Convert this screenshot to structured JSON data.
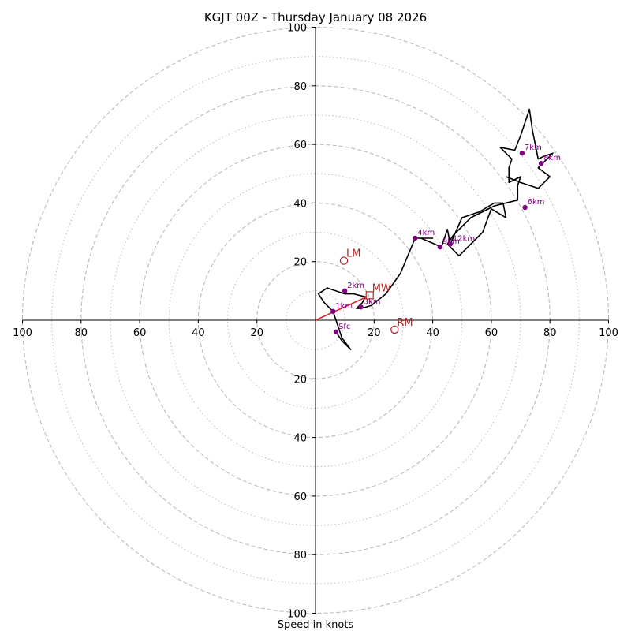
{
  "chart_data": {
    "type": "hodograph",
    "title": "KGJT 00Z - Thursday January 08 2026",
    "xlabel": "Speed in knots",
    "units": "knots",
    "range": [
      -100,
      100
    ],
    "ring_major": [
      20,
      40,
      60,
      80,
      100
    ],
    "ring_minor": [
      10,
      30,
      50,
      70,
      90
    ],
    "x_ticks": [
      {
        "v": -100,
        "label": "100"
      },
      {
        "v": -80,
        "label": "80"
      },
      {
        "v": -60,
        "label": "60"
      },
      {
        "v": -40,
        "label": "40"
      },
      {
        "v": -20,
        "label": "20"
      },
      {
        "v": 20,
        "label": "20"
      },
      {
        "v": 40,
        "label": "40"
      },
      {
        "v": 60,
        "label": "60"
      },
      {
        "v": 80,
        "label": "80"
      },
      {
        "v": 100,
        "label": "100"
      }
    ],
    "y_ticks": [
      {
        "v": 100,
        "label": "100"
      },
      {
        "v": 80,
        "label": "80"
      },
      {
        "v": 60,
        "label": "60"
      },
      {
        "v": 40,
        "label": "40"
      },
      {
        "v": 20,
        "label": "20"
      },
      {
        "v": -20,
        "label": "20"
      },
      {
        "v": -40,
        "label": "40"
      },
      {
        "v": -60,
        "label": "60"
      },
      {
        "v": -80,
        "label": "80"
      },
      {
        "v": -100,
        "label": "100"
      }
    ],
    "trace": [
      [
        7,
        -4
      ],
      [
        9,
        -7
      ],
      [
        12,
        -10
      ],
      [
        9,
        -6
      ],
      [
        6,
        3
      ],
      [
        3,
        6
      ],
      [
        1,
        9
      ],
      [
        4,
        11
      ],
      [
        10,
        9
      ],
      [
        13,
        9
      ],
      [
        17,
        8
      ],
      [
        16,
        6
      ],
      [
        14,
        4
      ],
      [
        15.5,
        4
      ],
      [
        19,
        5
      ],
      [
        24,
        9
      ],
      [
        29,
        16
      ],
      [
        34,
        28
      ],
      [
        40,
        28
      ],
      [
        36,
        28
      ],
      [
        43,
        25
      ],
      [
        45,
        31
      ],
      [
        46,
        26
      ],
      [
        50,
        35
      ],
      [
        56,
        37
      ],
      [
        61,
        40
      ],
      [
        64,
        40
      ],
      [
        65,
        35
      ],
      [
        60,
        38
      ],
      [
        57,
        30
      ],
      [
        55,
        28
      ],
      [
        49,
        22
      ],
      [
        45,
        26
      ],
      [
        47,
        29
      ],
      [
        53,
        35
      ],
      [
        61,
        39
      ],
      [
        69,
        41
      ],
      [
        69,
        44
      ],
      [
        69,
        46
      ],
      [
        70,
        49
      ],
      [
        66,
        47
      ],
      [
        66,
        52
      ],
      [
        67,
        55
      ],
      [
        65,
        57
      ],
      [
        63,
        59
      ],
      [
        68,
        58
      ],
      [
        70,
        63
      ],
      [
        73,
        72
      ],
      [
        74,
        65
      ],
      [
        76,
        55
      ],
      [
        78,
        56
      ],
      [
        81,
        57
      ],
      [
        76,
        52
      ],
      [
        80,
        49
      ],
      [
        76,
        45
      ],
      [
        70,
        47
      ],
      [
        65,
        49
      ]
    ],
    "height_markers": [
      {
        "label": "Sfc",
        "u": 7,
        "v": -4
      },
      {
        "label": "1km",
        "u": 6,
        "v": 3
      },
      {
        "label": "2km",
        "u": 10,
        "v": 10
      },
      {
        "label": "3km",
        "u": 15.5,
        "v": 4.5
      },
      {
        "label": "4km",
        "u": 34,
        "v": 28
      },
      {
        "label": "12km",
        "u": 46,
        "v": 26
      },
      {
        "label": "9km",
        "u": 42.5,
        "v": 25
      },
      {
        "label": "6km",
        "u": 71.5,
        "v": 38.5
      },
      {
        "label": "7km",
        "u": 70.5,
        "v": 57
      },
      {
        "label": "8km",
        "u": 77,
        "v": 53.5
      }
    ],
    "storm_motion": [
      {
        "label": "LM",
        "u": 9.7,
        "v": 20.3,
        "marker": "circle"
      },
      {
        "label": "RM",
        "u": 27,
        "v": -3.2,
        "marker": "circle"
      },
      {
        "label": "MW",
        "u": 18.5,
        "v": 8.5,
        "marker": "square"
      }
    ],
    "mean_wind_vector": {
      "u": 17.5,
      "v": 8
    },
    "colors": {
      "trace": "#000000",
      "markers": "#800080",
      "storm": "#b22222",
      "vector": "#d62728",
      "grid": "#bbbbbb",
      "axis": "#000000"
    }
  }
}
